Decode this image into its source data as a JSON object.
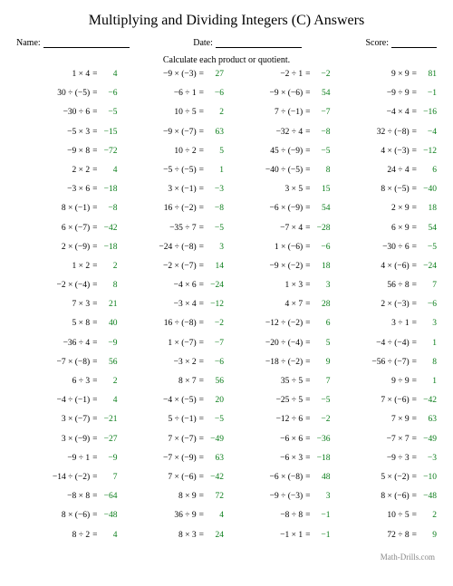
{
  "title": "Multiplying and Dividing Integers (C) Answers",
  "name_label": "Name:",
  "date_label": "Date:",
  "score_label": "Score:",
  "instruction": "Calculate each product or quotient.",
  "footer": "Math-Drills.com",
  "colors": {
    "answer": "#0a7d1a",
    "text": "#000000",
    "bg": "#ffffff",
    "footer": "#888888"
  },
  "columns": [
    [
      {
        "e": "1 × 4",
        "a": "4"
      },
      {
        "e": "30 ÷ (−5)",
        "a": "−6"
      },
      {
        "e": "−30 ÷ 6",
        "a": "−5"
      },
      {
        "e": "−5 × 3",
        "a": "−15"
      },
      {
        "e": "−9 × 8",
        "a": "−72"
      },
      {
        "e": "2 × 2",
        "a": "4"
      },
      {
        "e": "−3 × 6",
        "a": "−18"
      },
      {
        "e": "8 × (−1)",
        "a": "−8"
      },
      {
        "e": "6 × (−7)",
        "a": "−42"
      },
      {
        "e": "2 × (−9)",
        "a": "−18"
      },
      {
        "e": "1 × 2",
        "a": "2"
      },
      {
        "e": "−2 × (−4)",
        "a": "8"
      },
      {
        "e": "7 × 3",
        "a": "21"
      },
      {
        "e": "5 × 8",
        "a": "40"
      },
      {
        "e": "−36 ÷ 4",
        "a": "−9"
      },
      {
        "e": "−7 × (−8)",
        "a": "56"
      },
      {
        "e": "6 ÷ 3",
        "a": "2"
      },
      {
        "e": "−4 ÷ (−1)",
        "a": "4"
      },
      {
        "e": "3 × (−7)",
        "a": "−21"
      },
      {
        "e": "3 × (−9)",
        "a": "−27"
      },
      {
        "e": "−9 ÷ 1",
        "a": "−9"
      },
      {
        "e": "−14 ÷ (−2)",
        "a": "7"
      },
      {
        "e": "−8 × 8",
        "a": "−64"
      },
      {
        "e": "8 × (−6)",
        "a": "−48"
      },
      {
        "e": "8 ÷ 2",
        "a": "4"
      }
    ],
    [
      {
        "e": "−9 × (−3)",
        "a": "27"
      },
      {
        "e": "−6 ÷ 1",
        "a": "−6"
      },
      {
        "e": "10 ÷ 5",
        "a": "2"
      },
      {
        "e": "−9 × (−7)",
        "a": "63"
      },
      {
        "e": "10 ÷ 2",
        "a": "5"
      },
      {
        "e": "−5 ÷ (−5)",
        "a": "1"
      },
      {
        "e": "3 × (−1)",
        "a": "−3"
      },
      {
        "e": "16 ÷ (−2)",
        "a": "−8"
      },
      {
        "e": "−35 ÷ 7",
        "a": "−5"
      },
      {
        "e": "−24 ÷ (−8)",
        "a": "3"
      },
      {
        "e": "−2 × (−7)",
        "a": "14"
      },
      {
        "e": "−4 × 6",
        "a": "−24"
      },
      {
        "e": "−3 × 4",
        "a": "−12"
      },
      {
        "e": "16 ÷ (−8)",
        "a": "−2"
      },
      {
        "e": "1 × (−7)",
        "a": "−7"
      },
      {
        "e": "−3 × 2",
        "a": "−6"
      },
      {
        "e": "8 × 7",
        "a": "56"
      },
      {
        "e": "−4 × (−5)",
        "a": "20"
      },
      {
        "e": "5 ÷ (−1)",
        "a": "−5"
      },
      {
        "e": "7 × (−7)",
        "a": "−49"
      },
      {
        "e": "−7 × (−9)",
        "a": "63"
      },
      {
        "e": "7 × (−6)",
        "a": "−42"
      },
      {
        "e": "8 × 9",
        "a": "72"
      },
      {
        "e": "36 ÷ 9",
        "a": "4"
      },
      {
        "e": "8 × 3",
        "a": "24"
      }
    ],
    [
      {
        "e": "−2 ÷ 1",
        "a": "−2"
      },
      {
        "e": "−9 × (−6)",
        "a": "54"
      },
      {
        "e": "7 ÷ (−1)",
        "a": "−7"
      },
      {
        "e": "−32 ÷ 4",
        "a": "−8"
      },
      {
        "e": "45 ÷ (−9)",
        "a": "−5"
      },
      {
        "e": "−40 ÷ (−5)",
        "a": "8"
      },
      {
        "e": "3 × 5",
        "a": "15"
      },
      {
        "e": "−6 × (−9)",
        "a": "54"
      },
      {
        "e": "−7 × 4",
        "a": "−28"
      },
      {
        "e": "1 × (−6)",
        "a": "−6"
      },
      {
        "e": "−9 × (−2)",
        "a": "18"
      },
      {
        "e": "1 × 3",
        "a": "3"
      },
      {
        "e": "4 × 7",
        "a": "28"
      },
      {
        "e": "−12 ÷ (−2)",
        "a": "6"
      },
      {
        "e": "−20 ÷ (−4)",
        "a": "5"
      },
      {
        "e": "−18 ÷ (−2)",
        "a": "9"
      },
      {
        "e": "35 ÷ 5",
        "a": "7"
      },
      {
        "e": "−25 ÷ 5",
        "a": "−5"
      },
      {
        "e": "−12 ÷ 6",
        "a": "−2"
      },
      {
        "e": "−6 × 6",
        "a": "−36"
      },
      {
        "e": "−6 × 3",
        "a": "−18"
      },
      {
        "e": "−6 × (−8)",
        "a": "48"
      },
      {
        "e": "−9 ÷ (−3)",
        "a": "3"
      },
      {
        "e": "−8 ÷ 8",
        "a": "−1"
      },
      {
        "e": "−1 × 1",
        "a": "−1"
      }
    ],
    [
      {
        "e": "9 × 9",
        "a": "81"
      },
      {
        "e": "−9 ÷ 9",
        "a": "−1"
      },
      {
        "e": "−4 × 4",
        "a": "−16"
      },
      {
        "e": "32 ÷ (−8)",
        "a": "−4"
      },
      {
        "e": "4 × (−3)",
        "a": "−12"
      },
      {
        "e": "24 ÷ 4",
        "a": "6"
      },
      {
        "e": "8 × (−5)",
        "a": "−40"
      },
      {
        "e": "2 × 9",
        "a": "18"
      },
      {
        "e": "6 × 9",
        "a": "54"
      },
      {
        "e": "−30 ÷ 6",
        "a": "−5"
      },
      {
        "e": "4 × (−6)",
        "a": "−24"
      },
      {
        "e": "56 ÷ 8",
        "a": "7"
      },
      {
        "e": "2 × (−3)",
        "a": "−6"
      },
      {
        "e": "3 ÷ 1",
        "a": "3"
      },
      {
        "e": "−4 ÷ (−4)",
        "a": "1"
      },
      {
        "e": "−56 ÷ (−7)",
        "a": "8"
      },
      {
        "e": "9 ÷ 9",
        "a": "1"
      },
      {
        "e": "7 × (−6)",
        "a": "−42"
      },
      {
        "e": "7 × 9",
        "a": "63"
      },
      {
        "e": "−7 × 7",
        "a": "−49"
      },
      {
        "e": "−9 ÷ 3",
        "a": "−3"
      },
      {
        "e": "5 × (−2)",
        "a": "−10"
      },
      {
        "e": "8 × (−6)",
        "a": "−48"
      },
      {
        "e": "10 ÷ 5",
        "a": "2"
      },
      {
        "e": "72 ÷ 8",
        "a": "9"
      }
    ]
  ]
}
